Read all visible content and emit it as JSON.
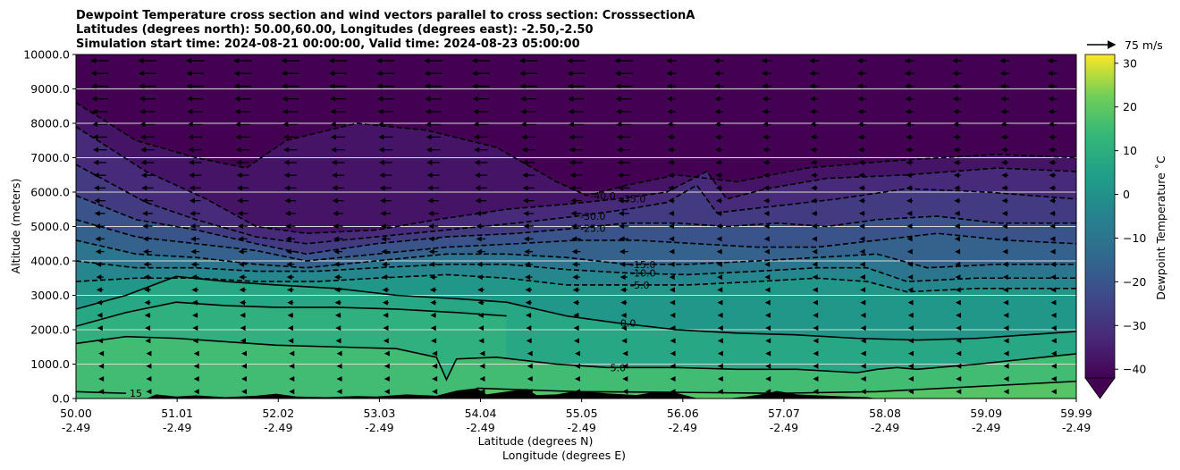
{
  "title_lines": [
    "Dewpoint Temperature cross section and wind vectors parallel to cross section: CrosssectionA",
    "Latitudes (degrees north): 50.00,60.00, Longitudes (degrees east): -2.50,-2.50",
    "Simulation start time: 2024-08-21 00:00:00, Valid time: 2024-08-23 05:00:00"
  ],
  "chart_data": {
    "type": "heatmap",
    "variable": "Dewpoint Temperature",
    "ylabel": "Altitude (meters)",
    "xlabel_line1": "Latitude (degrees N)",
    "xlabel_line2": "Longitude (degrees E)",
    "xlim": [
      50.0,
      59.99
    ],
    "ylim": [
      0,
      10000
    ],
    "y_ticks": [
      {
        "value": 0,
        "label": "0.0"
      },
      {
        "value": 1000,
        "label": "1000.0"
      },
      {
        "value": 2000,
        "label": "2000.0"
      },
      {
        "value": 3000,
        "label": "3000.0"
      },
      {
        "value": 4000,
        "label": "4000.0"
      },
      {
        "value": 5000,
        "label": "5000.0"
      },
      {
        "value": 6000,
        "label": "6000.0"
      },
      {
        "value": 7000,
        "label": "7000.0"
      },
      {
        "value": 8000,
        "label": "8000.0"
      },
      {
        "value": 9000,
        "label": "9000.0"
      },
      {
        "value": 10000,
        "label": "10000.0"
      }
    ],
    "x_ticks": [
      {
        "lat": 50.0,
        "lat_label": "50.00",
        "lon_label": "-2.49"
      },
      {
        "lat": 51.01,
        "lat_label": "51.01",
        "lon_label": "-2.49"
      },
      {
        "lat": 52.02,
        "lat_label": "52.02",
        "lon_label": "-2.49"
      },
      {
        "lat": 53.03,
        "lat_label": "53.03",
        "lon_label": "-2.49"
      },
      {
        "lat": 54.04,
        "lat_label": "54.04",
        "lon_label": "-2.49"
      },
      {
        "lat": 55.05,
        "lat_label": "55.05",
        "lon_label": "-2.49"
      },
      {
        "lat": 56.06,
        "lat_label": "56.06",
        "lon_label": "-2.49"
      },
      {
        "lat": 57.07,
        "lat_label": "57.07",
        "lon_label": "-2.49"
      },
      {
        "lat": 58.08,
        "lat_label": "58.08",
        "lon_label": "-2.49"
      },
      {
        "lat": 59.09,
        "lat_label": "59.09",
        "lon_label": "-2.49"
      },
      {
        "lat": 59.99,
        "lat_label": "59.99",
        "lon_label": "-2.49"
      }
    ],
    "grid": "horizontal",
    "colorbar": {
      "label": "Dewpoint Temperature ˚C",
      "range": [
        -42,
        32
      ],
      "extend": "min",
      "colormap": "viridis",
      "ticks": [
        {
          "value": -40,
          "label": "−40"
        },
        {
          "value": -30,
          "label": "−30"
        },
        {
          "value": -20,
          "label": "−20"
        },
        {
          "value": -10,
          "label": "−10"
        },
        {
          "value": 0,
          "label": "0"
        },
        {
          "value": 10,
          "label": "10"
        },
        {
          "value": 20,
          "label": "20"
        },
        {
          "value": 30,
          "label": "30"
        }
      ]
    },
    "quiver_key": {
      "label": "75 m/s",
      "value": 75
    },
    "contours": [
      {
        "level": -40,
        "label": "-40.0",
        "style": "dashed",
        "points": [
          [
            50.0,
            8600
          ],
          [
            50.6,
            7500
          ],
          [
            51.2,
            7000
          ],
          [
            51.7,
            6700
          ],
          [
            52.1,
            7500
          ],
          [
            52.8,
            8000
          ],
          [
            53.5,
            7800
          ],
          [
            54.2,
            7300
          ],
          [
            54.8,
            6300
          ],
          [
            55.1,
            5900
          ],
          [
            55.5,
            6200
          ],
          [
            56.0,
            6500
          ],
          [
            56.6,
            6300
          ],
          [
            57.3,
            6700
          ],
          [
            58.1,
            6900
          ],
          [
            59.2,
            7100
          ],
          [
            59.99,
            7000
          ]
        ]
      },
      {
        "level": -35,
        "label": "-35.0",
        "style": "dashed",
        "points": [
          [
            50.0,
            7900
          ],
          [
            50.7,
            6600
          ],
          [
            51.3,
            5800
          ],
          [
            51.8,
            5000
          ],
          [
            52.3,
            4800
          ],
          [
            53.0,
            4900
          ],
          [
            53.6,
            5200
          ],
          [
            54.3,
            5500
          ],
          [
            54.9,
            5650
          ],
          [
            55.4,
            5800
          ],
          [
            55.9,
            6000
          ],
          [
            56.3,
            6600
          ],
          [
            56.5,
            5800
          ],
          [
            56.9,
            6100
          ],
          [
            57.5,
            6400
          ],
          [
            58.3,
            6500
          ],
          [
            59.2,
            6700
          ],
          [
            59.99,
            6600
          ]
        ]
      },
      {
        "level": -30,
        "label": "-30.0",
        "style": "dashed",
        "points": [
          [
            50.0,
            6800
          ],
          [
            50.7,
            5700
          ],
          [
            51.2,
            5200
          ],
          [
            51.8,
            4700
          ],
          [
            52.3,
            4500
          ],
          [
            53.0,
            4700
          ],
          [
            53.7,
            4900
          ],
          [
            54.4,
            5100
          ],
          [
            55.0,
            5300
          ],
          [
            55.5,
            5500
          ],
          [
            55.9,
            5700
          ],
          [
            56.2,
            6200
          ],
          [
            56.4,
            5400
          ],
          [
            57.0,
            5600
          ],
          [
            57.6,
            5800
          ],
          [
            58.3,
            6100
          ],
          [
            59.1,
            6000
          ],
          [
            59.99,
            5800
          ]
        ]
      },
      {
        "level": -25,
        "label": "-25.0",
        "style": "dashed",
        "points": [
          [
            50.0,
            5900
          ],
          [
            50.6,
            5200
          ],
          [
            51.2,
            4900
          ],
          [
            51.8,
            4500
          ],
          [
            52.3,
            4200
          ],
          [
            53.0,
            4500
          ],
          [
            53.7,
            4700
          ],
          [
            54.4,
            4800
          ],
          [
            55.0,
            4950
          ],
          [
            55.5,
            5100
          ],
          [
            56.0,
            5100
          ],
          [
            56.5,
            5000
          ],
          [
            57.0,
            5100
          ],
          [
            57.5,
            5000
          ],
          [
            58.0,
            5200
          ],
          [
            58.6,
            5300
          ],
          [
            59.2,
            5100
          ],
          [
            59.99,
            5100
          ]
        ]
      },
      {
        "level": -20,
        "label": "",
        "style": "dashed",
        "points": [
          [
            50.0,
            5200
          ],
          [
            50.6,
            4700
          ],
          [
            51.2,
            4500
          ],
          [
            51.8,
            4300
          ],
          [
            52.3,
            4000
          ],
          [
            53.0,
            4200
          ],
          [
            53.7,
            4400
          ],
          [
            54.4,
            4500
          ],
          [
            55.0,
            4600
          ],
          [
            55.6,
            4600
          ],
          [
            56.2,
            4500
          ],
          [
            56.8,
            4400
          ],
          [
            57.4,
            4400
          ],
          [
            58.0,
            4600
          ],
          [
            58.6,
            4800
          ],
          [
            59.3,
            4600
          ],
          [
            59.99,
            4500
          ]
        ]
      },
      {
        "level": -15,
        "label": "-15.0",
        "style": "dashed",
        "points": [
          [
            50.0,
            4600
          ],
          [
            50.6,
            4200
          ],
          [
            51.2,
            4100
          ],
          [
            51.8,
            3900
          ],
          [
            52.3,
            3800
          ],
          [
            53.0,
            4000
          ],
          [
            53.7,
            4200
          ],
          [
            54.3,
            4200
          ],
          [
            54.9,
            4100
          ],
          [
            55.5,
            3900
          ],
          [
            56.1,
            3900
          ],
          [
            56.8,
            4000
          ],
          [
            57.4,
            4100
          ],
          [
            58.0,
            4200
          ],
          [
            58.5,
            3800
          ],
          [
            59.2,
            3900
          ],
          [
            59.99,
            3900
          ]
        ]
      },
      {
        "level": -10,
        "label": "-10.0",
        "style": "dashed",
        "points": [
          [
            50.0,
            4000
          ],
          [
            50.6,
            3800
          ],
          [
            51.2,
            3800
          ],
          [
            51.8,
            3700
          ],
          [
            52.4,
            3700
          ],
          [
            53.0,
            3800
          ],
          [
            53.7,
            3900
          ],
          [
            54.3,
            3900
          ],
          [
            54.9,
            3750
          ],
          [
            55.5,
            3650
          ],
          [
            56.1,
            3600
          ],
          [
            56.8,
            3700
          ],
          [
            57.4,
            3800
          ],
          [
            57.9,
            3800
          ],
          [
            58.3,
            3400
          ],
          [
            59.0,
            3500
          ],
          [
            59.99,
            3500
          ]
        ]
      },
      {
        "level": -5,
        "label": "-5.0",
        "style": "dashed",
        "points": [
          [
            50.0,
            3400
          ],
          [
            50.6,
            3500
          ],
          [
            51.2,
            3500
          ],
          [
            51.8,
            3400
          ],
          [
            52.4,
            3400
          ],
          [
            53.0,
            3500
          ],
          [
            53.7,
            3600
          ],
          [
            54.3,
            3500
          ],
          [
            54.9,
            3300
          ],
          [
            55.5,
            3300
          ],
          [
            56.1,
            3300
          ],
          [
            56.8,
            3400
          ],
          [
            57.4,
            3500
          ],
          [
            57.9,
            3400
          ],
          [
            58.3,
            3100
          ],
          [
            59.0,
            3200
          ],
          [
            59.99,
            3200
          ]
        ]
      },
      {
        "level": 0,
        "label": "0.0",
        "style": "solid",
        "points": [
          [
            50.0,
            2600
          ],
          [
            50.5,
            3000
          ],
          [
            51.0,
            3550
          ],
          [
            51.5,
            3400
          ],
          [
            52.0,
            3300
          ],
          [
            52.6,
            3200
          ],
          [
            53.2,
            3000
          ],
          [
            53.8,
            2900
          ],
          [
            54.3,
            2800
          ],
          [
            54.9,
            2400
          ],
          [
            55.4,
            2200
          ],
          [
            56.0,
            2000
          ],
          [
            56.6,
            1900
          ],
          [
            57.2,
            1850
          ],
          [
            57.8,
            1750
          ],
          [
            58.4,
            1700
          ],
          [
            59.0,
            1750
          ],
          [
            59.99,
            1950
          ]
        ]
      },
      {
        "level": 2.5,
        "label": "",
        "style": "solid",
        "points": [
          [
            50.0,
            2100
          ],
          [
            50.5,
            2500
          ],
          [
            51.0,
            2800
          ],
          [
            51.5,
            2700
          ],
          [
            52.0,
            2650
          ],
          [
            52.6,
            2650
          ],
          [
            53.2,
            2600
          ],
          [
            53.8,
            2500
          ],
          [
            54.3,
            2400
          ]
        ]
      },
      {
        "level": 5,
        "label": "5.0",
        "style": "solid",
        "points": [
          [
            50.0,
            1600
          ],
          [
            50.5,
            1800
          ],
          [
            51.0,
            1750
          ],
          [
            51.5,
            1650
          ],
          [
            52.0,
            1550
          ],
          [
            52.6,
            1500
          ],
          [
            53.2,
            1450
          ],
          [
            53.6,
            1200
          ],
          [
            53.7,
            550
          ],
          [
            53.8,
            1150
          ],
          [
            54.2,
            1200
          ],
          [
            54.8,
            1000
          ],
          [
            55.3,
            900
          ],
          [
            56.0,
            900
          ],
          [
            56.6,
            850
          ],
          [
            57.2,
            850
          ],
          [
            57.8,
            750
          ],
          [
            58.0,
            850
          ],
          [
            58.2,
            900
          ],
          [
            58.4,
            850
          ],
          [
            59.0,
            1000
          ],
          [
            59.99,
            1300
          ]
        ]
      },
      {
        "level": 15,
        "label": "15",
        "style": "solid",
        "points": [
          [
            50.0,
            200
          ],
          [
            50.5,
            150
          ]
        ]
      },
      {
        "level": 10,
        "label": "",
        "style": "solid",
        "points": [
          [
            54.0,
            300
          ],
          [
            55.0,
            200
          ],
          [
            56.0,
            180
          ],
          [
            57.0,
            150
          ],
          [
            58.0,
            200
          ],
          [
            59.0,
            350
          ],
          [
            59.99,
            500
          ]
        ]
      }
    ],
    "wind_vectors": {
      "direction": "toward lower latitude (southward, parallel to cross section)",
      "reference_speed": 75,
      "note": "stronger aloft, weak near surface"
    },
    "terrain": {
      "color": "#000000",
      "profile": [
        [
          50.0,
          0
        ],
        [
          50.7,
          0
        ],
        [
          50.8,
          120
        ],
        [
          51.0,
          60
        ],
        [
          51.2,
          90
        ],
        [
          51.5,
          40
        ],
        [
          51.8,
          80
        ],
        [
          52.0,
          140
        ],
        [
          52.2,
          60
        ],
        [
          52.5,
          40
        ],
        [
          52.8,
          70
        ],
        [
          53.0,
          60
        ],
        [
          53.3,
          120
        ],
        [
          53.6,
          80
        ],
        [
          53.8,
          230
        ],
        [
          54.0,
          300
        ],
        [
          54.1,
          120
        ],
        [
          54.3,
          200
        ],
        [
          54.5,
          280
        ],
        [
          54.6,
          100
        ],
        [
          54.8,
          120
        ],
        [
          55.0,
          220
        ],
        [
          55.3,
          150
        ],
        [
          55.6,
          100
        ],
        [
          55.8,
          200
        ],
        [
          56.0,
          160
        ],
        [
          56.2,
          10
        ],
        [
          56.5,
          0
        ],
        [
          56.7,
          60
        ],
        [
          56.9,
          150
        ],
        [
          57.0,
          220
        ],
        [
          57.2,
          120
        ],
        [
          57.5,
          80
        ],
        [
          57.7,
          60
        ],
        [
          57.9,
          40
        ],
        [
          58.0,
          0
        ],
        [
          59.99,
          0
        ]
      ]
    }
  }
}
